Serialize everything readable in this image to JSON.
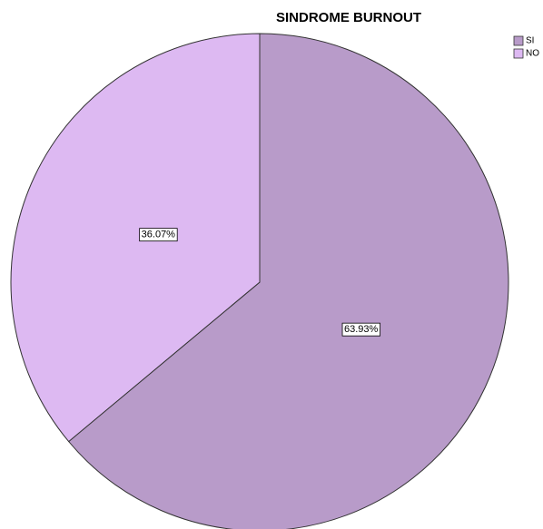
{
  "chart_data": {
    "type": "pie",
    "title": "SINDROME BURNOUT",
    "categories": [
      "SI",
      "NO"
    ],
    "values": [
      63.93,
      36.07
    ],
    "value_labels": [
      "63.93%",
      "36.07%"
    ],
    "colors": [
      "#b89bc9",
      "#ddb9f2"
    ]
  }
}
